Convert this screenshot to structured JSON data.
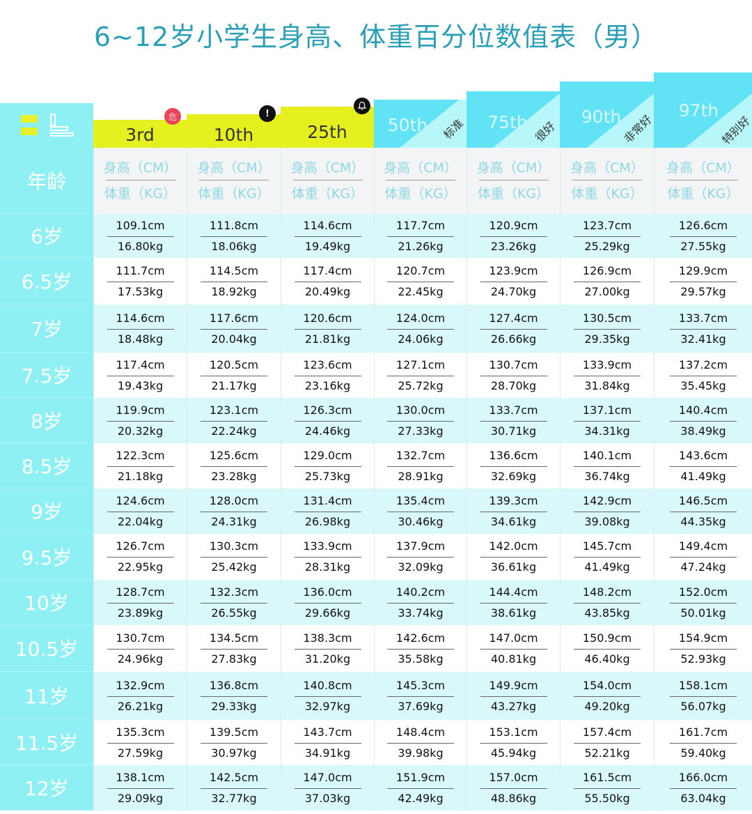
{
  "title": "6~12岁小学生身高、体重百分位数值表（男）",
  "header": {
    "corner_icon": "height-weight-icon",
    "percentiles": [
      {
        "label": "3rd",
        "badge": "危",
        "badge_type": "danger",
        "tag": ""
      },
      {
        "label": "10th",
        "badge": "!",
        "badge_type": "warning",
        "tag": ""
      },
      {
        "label": "25th",
        "badge": "bell",
        "badge_type": "notice",
        "tag": ""
      },
      {
        "label": "50th",
        "badge": "",
        "badge_type": "",
        "tag": "标准"
      },
      {
        "label": "75th",
        "badge": "",
        "badge_type": "",
        "tag": "很好"
      },
      {
        "label": "90th",
        "badge": "",
        "badge_type": "",
        "tag": "非常好"
      },
      {
        "label": "97th",
        "badge": "",
        "badge_type": "",
        "tag": "特别好"
      }
    ]
  },
  "unit_row": {
    "age_label": "年龄",
    "height_unit": "身高（CM）",
    "weight_unit": "体重（KG）"
  },
  "colors": {
    "title": "#2a9fb5",
    "age_column": "#8ff0f4",
    "low_percentile_header": "#e6f01f",
    "high_percentile_header": "#62e2f5",
    "row_tint": "#d9f8f9",
    "danger_badge": "#e8455a"
  },
  "rows": [
    {
      "age": "6岁",
      "values": [
        [
          "109.1cm",
          "16.80kg"
        ],
        [
          "111.8cm",
          "18.06kg"
        ],
        [
          "114.6cm",
          "19.49kg"
        ],
        [
          "117.7cm",
          "21.26kg"
        ],
        [
          "120.9cm",
          "23.26kg"
        ],
        [
          "123.7cm",
          "25.29kg"
        ],
        [
          "126.6cm",
          "27.55kg"
        ]
      ]
    },
    {
      "age": "6.5岁",
      "values": [
        [
          "111.7cm",
          "17.53kg"
        ],
        [
          "114.5cm",
          "18.92kg"
        ],
        [
          "117.4cm",
          "20.49kg"
        ],
        [
          "120.7cm",
          "22.45kg"
        ],
        [
          "123.9cm",
          "24.70kg"
        ],
        [
          "126.9cm",
          "27.00kg"
        ],
        [
          "129.9cm",
          "29.57kg"
        ]
      ]
    },
    {
      "age": "7岁",
      "values": [
        [
          "114.6cm",
          "18.48kg"
        ],
        [
          "117.6cm",
          "20.04kg"
        ],
        [
          "120.6cm",
          "21.81kg"
        ],
        [
          "124.0cm",
          "24.06kg"
        ],
        [
          "127.4cm",
          "26.66kg"
        ],
        [
          "130.5cm",
          "29.35kg"
        ],
        [
          "133.7cm",
          "32.41kg"
        ]
      ]
    },
    {
      "age": "7.5岁",
      "values": [
        [
          "117.4cm",
          "19.43kg"
        ],
        [
          "120.5cm",
          "21.17kg"
        ],
        [
          "123.6cm",
          "23.16kg"
        ],
        [
          "127.1cm",
          "25.72kg"
        ],
        [
          "130.7cm",
          "28.70kg"
        ],
        [
          "133.9cm",
          "31.84kg"
        ],
        [
          "137.2cm",
          "35.45kg"
        ]
      ]
    },
    {
      "age": "8岁",
      "values": [
        [
          "119.9cm",
          "20.32kg"
        ],
        [
          "123.1cm",
          "22.24kg"
        ],
        [
          "126.3cm",
          "24.46kg"
        ],
        [
          "130.0cm",
          "27.33kg"
        ],
        [
          "133.7cm",
          "30.71kg"
        ],
        [
          "137.1cm",
          "34.31kg"
        ],
        [
          "140.4cm",
          "38.49kg"
        ]
      ]
    },
    {
      "age": "8.5岁",
      "values": [
        [
          "122.3cm",
          "21.18kg"
        ],
        [
          "125.6cm",
          "23.28kg"
        ],
        [
          "129.0cm",
          "25.73kg"
        ],
        [
          "132.7cm",
          "28.91kg"
        ],
        [
          "136.6cm",
          "32.69kg"
        ],
        [
          "140.1cm",
          "36.74kg"
        ],
        [
          "143.6cm",
          "41.49kg"
        ]
      ]
    },
    {
      "age": "9岁",
      "values": [
        [
          "124.6cm",
          "22.04kg"
        ],
        [
          "128.0cm",
          "24.31kg"
        ],
        [
          "131.4cm",
          "26.98kg"
        ],
        [
          "135.4cm",
          "30.46kg"
        ],
        [
          "139.3cm",
          "34.61kg"
        ],
        [
          "142.9cm",
          "39.08kg"
        ],
        [
          "146.5cm",
          "44.35kg"
        ]
      ]
    },
    {
      "age": "9.5岁",
      "values": [
        [
          "126.7cm",
          "22.95kg"
        ],
        [
          "130.3cm",
          "25.42kg"
        ],
        [
          "133.9cm",
          "28.31kg"
        ],
        [
          "137.9cm",
          "32.09kg"
        ],
        [
          "142.0cm",
          "36.61kg"
        ],
        [
          "145.7cm",
          "41.49kg"
        ],
        [
          "149.4cm",
          "47.24kg"
        ]
      ]
    },
    {
      "age": "10岁",
      "values": [
        [
          "128.7cm",
          "23.89kg"
        ],
        [
          "132.3cm",
          "26.55kg"
        ],
        [
          "136.0cm",
          "29.66kg"
        ],
        [
          "140.2cm",
          "33.74kg"
        ],
        [
          "144.4cm",
          "38.61kg"
        ],
        [
          "148.2cm",
          "43.85kg"
        ],
        [
          "152.0cm",
          "50.01kg"
        ]
      ]
    },
    {
      "age": "10.5岁",
      "values": [
        [
          "130.7cm",
          "24.96kg"
        ],
        [
          "134.5cm",
          "27.83kg"
        ],
        [
          "138.3cm",
          "31.20kg"
        ],
        [
          "142.6cm",
          "35.58kg"
        ],
        [
          "147.0cm",
          "40.81kg"
        ],
        [
          "150.9cm",
          "46.40kg"
        ],
        [
          "154.9cm",
          "52.93kg"
        ]
      ]
    },
    {
      "age": "11岁",
      "values": [
        [
          "132.9cm",
          "26.21kg"
        ],
        [
          "136.8cm",
          "29.33kg"
        ],
        [
          "140.8cm",
          "32.97kg"
        ],
        [
          "145.3cm",
          "37.69kg"
        ],
        [
          "149.9cm",
          "43.27kg"
        ],
        [
          "154.0cm",
          "49.20kg"
        ],
        [
          "158.1cm",
          "56.07kg"
        ]
      ]
    },
    {
      "age": "11.5岁",
      "values": [
        [
          "135.3cm",
          "27.59kg"
        ],
        [
          "139.5cm",
          "30.97kg"
        ],
        [
          "143.7cm",
          "34.91kg"
        ],
        [
          "148.4cm",
          "39.98kg"
        ],
        [
          "153.1cm",
          "45.94kg"
        ],
        [
          "157.4cm",
          "52.21kg"
        ],
        [
          "161.7cm",
          "59.40kg"
        ]
      ]
    },
    {
      "age": "12岁",
      "values": [
        [
          "138.1cm",
          "29.09kg"
        ],
        [
          "142.5cm",
          "32.77kg"
        ],
        [
          "147.0cm",
          "37.03kg"
        ],
        [
          "151.9cm",
          "42.49kg"
        ],
        [
          "157.0cm",
          "48.86kg"
        ],
        [
          "161.5cm",
          "55.50kg"
        ],
        [
          "166.0cm",
          "63.04kg"
        ]
      ]
    }
  ],
  "chart_data": {
    "type": "table",
    "title": "6~12岁小学生身高、体重百分位数值表（男）",
    "columns": [
      "年龄",
      "3rd",
      "10th",
      "25th",
      "50th",
      "75th",
      "90th",
      "97th"
    ],
    "column_tags": {
      "50th": "标准",
      "75th": "很好",
      "90th": "非常好",
      "97th": "特别好"
    },
    "ages": [
      6,
      6.5,
      7,
      7.5,
      8,
      8.5,
      9,
      9.5,
      10,
      10.5,
      11,
      11.5,
      12
    ],
    "height_cm": {
      "3rd": [
        109.1,
        111.7,
        114.6,
        117.4,
        119.9,
        122.3,
        124.6,
        126.7,
        128.7,
        130.7,
        132.9,
        135.3,
        138.1
      ],
      "10th": [
        111.8,
        114.5,
        117.6,
        120.5,
        123.1,
        125.6,
        128.0,
        130.3,
        132.3,
        134.5,
        136.8,
        139.5,
        142.5
      ],
      "25th": [
        114.6,
        117.4,
        120.6,
        123.6,
        126.3,
        129.0,
        131.4,
        133.9,
        136.0,
        138.3,
        140.8,
        143.7,
        147.0
      ],
      "50th": [
        117.7,
        120.7,
        124.0,
        127.1,
        130.0,
        132.7,
        135.4,
        137.9,
        140.2,
        142.6,
        145.3,
        148.4,
        151.9
      ],
      "75th": [
        120.9,
        123.9,
        127.4,
        130.7,
        133.7,
        136.6,
        139.3,
        142.0,
        144.4,
        147.0,
        149.9,
        153.1,
        157.0
      ],
      "90th": [
        123.7,
        126.9,
        130.5,
        133.9,
        137.1,
        140.1,
        142.9,
        145.7,
        148.2,
        150.9,
        154.0,
        157.4,
        161.5
      ],
      "97th": [
        126.6,
        129.9,
        133.7,
        137.2,
        140.4,
        143.6,
        146.5,
        149.4,
        152.0,
        154.9,
        158.1,
        161.7,
        166.0
      ]
    },
    "weight_kg": {
      "3rd": [
        16.8,
        17.53,
        18.48,
        19.43,
        20.32,
        21.18,
        22.04,
        22.95,
        23.89,
        24.96,
        26.21,
        27.59,
        29.09
      ],
      "10th": [
        18.06,
        18.92,
        20.04,
        21.17,
        22.24,
        23.28,
        24.31,
        25.42,
        26.55,
        27.83,
        29.33,
        30.97,
        32.77
      ],
      "25th": [
        19.49,
        20.49,
        21.81,
        23.16,
        24.46,
        25.73,
        26.98,
        28.31,
        29.66,
        31.2,
        32.97,
        34.91,
        37.03
      ],
      "50th": [
        21.26,
        22.45,
        24.06,
        25.72,
        27.33,
        28.91,
        30.46,
        32.09,
        33.74,
        35.58,
        37.69,
        39.98,
        42.49
      ],
      "75th": [
        23.26,
        24.7,
        26.66,
        28.7,
        30.71,
        32.69,
        34.61,
        36.61,
        38.61,
        40.81,
        43.27,
        45.94,
        48.86
      ],
      "90th": [
        25.29,
        27.0,
        29.35,
        31.84,
        34.31,
        36.74,
        39.08,
        41.49,
        43.85,
        46.4,
        49.2,
        52.21,
        55.5
      ],
      "97th": [
        27.55,
        29.57,
        32.41,
        35.45,
        38.49,
        41.49,
        44.35,
        47.24,
        50.01,
        52.93,
        56.07,
        59.4,
        63.04
      ]
    }
  }
}
